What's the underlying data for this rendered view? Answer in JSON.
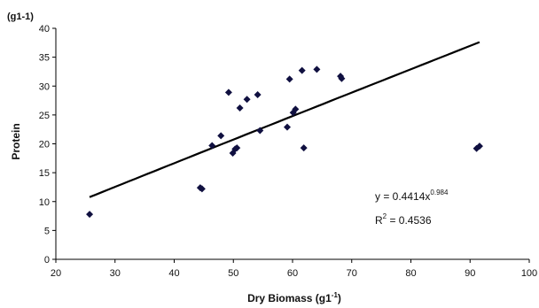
{
  "chart_data": {
    "type": "scatter",
    "title": "",
    "xlabel": "Dry Biomass (g1",
    "xlabel_sup": "-1",
    "xlabel_close": ")",
    "ylabel": "Protein",
    "y_unit": "(g1-1)",
    "xlim": [
      20,
      100
    ],
    "ylim": [
      0,
      40
    ],
    "x_ticks": [
      20,
      30,
      40,
      50,
      60,
      70,
      80,
      90,
      100
    ],
    "y_ticks": [
      0,
      5,
      10,
      15,
      20,
      25,
      30,
      35,
      40
    ],
    "grid": false,
    "points": [
      {
        "x": 25.7,
        "y": 7.8
      },
      {
        "x": 44.4,
        "y": 12.4
      },
      {
        "x": 44.7,
        "y": 12.2
      },
      {
        "x": 46.4,
        "y": 19.7
      },
      {
        "x": 47.9,
        "y": 21.4
      },
      {
        "x": 49.2,
        "y": 28.9
      },
      {
        "x": 49.9,
        "y": 18.4
      },
      {
        "x": 50.3,
        "y": 19.1
      },
      {
        "x": 50.6,
        "y": 19.3
      },
      {
        "x": 51.1,
        "y": 26.2
      },
      {
        "x": 52.3,
        "y": 27.7
      },
      {
        "x": 54.1,
        "y": 28.5
      },
      {
        "x": 54.5,
        "y": 22.3
      },
      {
        "x": 59.1,
        "y": 22.9
      },
      {
        "x": 59.5,
        "y": 31.2
      },
      {
        "x": 60.1,
        "y": 25.4
      },
      {
        "x": 60.5,
        "y": 26.0
      },
      {
        "x": 61.6,
        "y": 32.7
      },
      {
        "x": 61.9,
        "y": 19.3
      },
      {
        "x": 64.1,
        "y": 32.9
      },
      {
        "x": 68.1,
        "y": 31.7
      },
      {
        "x": 68.3,
        "y": 31.3
      },
      {
        "x": 91.1,
        "y": 19.2
      },
      {
        "x": 91.6,
        "y": 19.6
      }
    ],
    "trendline": {
      "type": "power",
      "a": 0.4414,
      "b": 0.984,
      "x_range": [
        25.7,
        91.6
      ]
    },
    "equation_text": "y = 0.4414x",
    "equation_exponent": "0.984",
    "r2_label": "R",
    "r2_sup": "2",
    "r2_value": " = 0.4536",
    "marker_color": "#101040",
    "line_color": "#000000"
  }
}
